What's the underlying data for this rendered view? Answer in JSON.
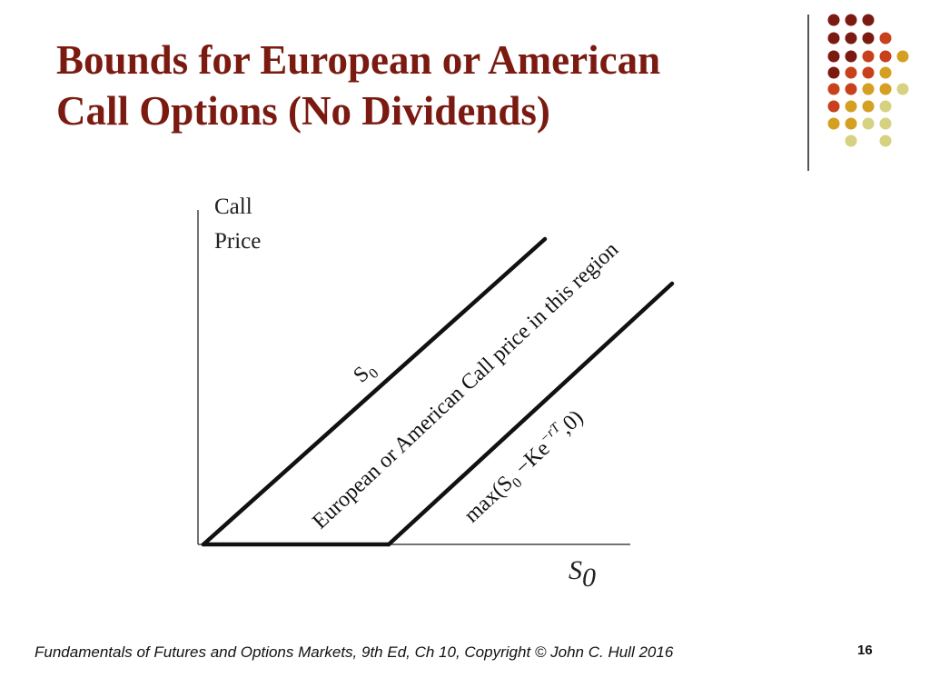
{
  "slide": {
    "title_line1": "Bounds for European or American",
    "title_line2": "Call Options (No Dividends)",
    "footer": "Fundamentals of Futures and Options Markets, 9th Ed, Ch 10, Copyright © John  C. Hull 2016",
    "page_number": "16"
  },
  "diagram": {
    "y_axis_label_line1": "Call",
    "y_axis_label_line2": "Price",
    "x_axis_label_main": "S",
    "x_axis_label_sub": "0",
    "upper_bound_label_main": "S",
    "upper_bound_label_sub": "0",
    "region_label": "European or American Call  price in this region",
    "lower_bound_label_prefix": "max(S",
    "lower_bound_label_sub": "0",
    "lower_bound_label_mid": " −Ke",
    "lower_bound_label_sup": "−rT",
    "lower_bound_label_suffix": ",0)"
  },
  "theme": {
    "title_color": "#7a1a10",
    "dot_colors": {
      "maroon": "#7a1a10",
      "red": "#c8401c",
      "gold": "#d5a021",
      "olive": "#d6d282"
    }
  }
}
